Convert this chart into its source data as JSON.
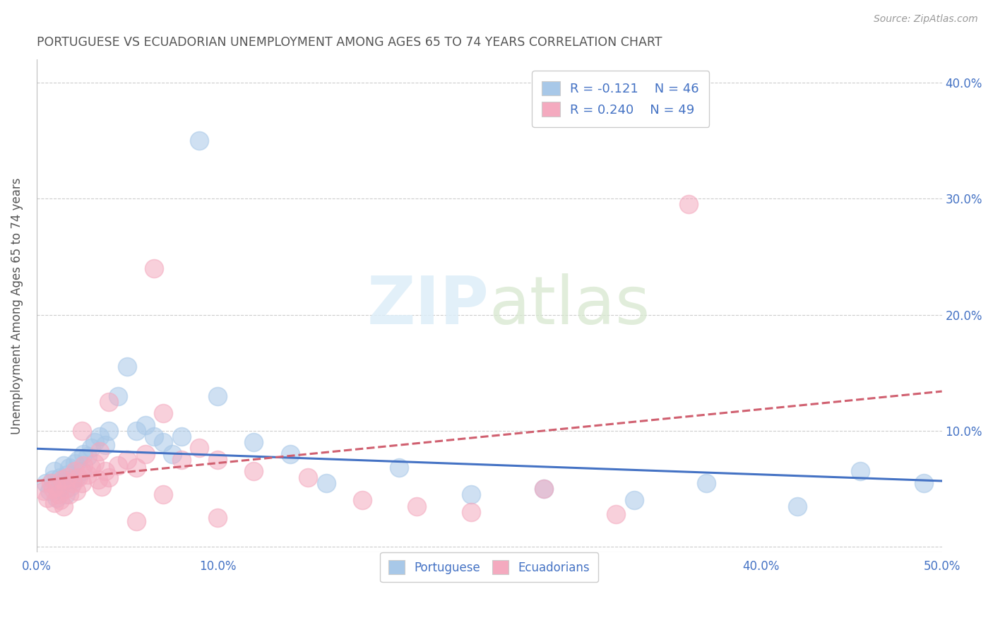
{
  "title": "PORTUGUESE VS ECUADORIAN UNEMPLOYMENT AMONG AGES 65 TO 74 YEARS CORRELATION CHART",
  "source": "Source: ZipAtlas.com",
  "ylabel": "Unemployment Among Ages 65 to 74 years",
  "xlim": [
    0,
    0.5
  ],
  "ylim": [
    -0.005,
    0.42
  ],
  "portuguese_color": "#a8c8e8",
  "ecuadorian_color": "#f4aabf",
  "portuguese_line_color": "#4472c4",
  "ecuadorian_line_color": "#d06070",
  "legend_R_portuguese": "-0.121",
  "legend_N_portuguese": "46",
  "legend_R_ecuadorian": "0.240",
  "legend_N_ecuadorian": "49",
  "watermark_zip": "ZIP",
  "watermark_atlas": "atlas",
  "bg_color": "#ffffff",
  "grid_color": "#cccccc",
  "title_color": "#555555",
  "axis_color": "#4472c4",
  "ylabel_color": "#555555",
  "portuguese_x": [
    0.005,
    0.007,
    0.009,
    0.01,
    0.011,
    0.012,
    0.013,
    0.014,
    0.015,
    0.016,
    0.017,
    0.018,
    0.019,
    0.02,
    0.021,
    0.022,
    0.023,
    0.025,
    0.026,
    0.028,
    0.03,
    0.032,
    0.035,
    0.038,
    0.04,
    0.045,
    0.05,
    0.055,
    0.06,
    0.065,
    0.07,
    0.075,
    0.08,
    0.09,
    0.1,
    0.12,
    0.14,
    0.16,
    0.2,
    0.24,
    0.28,
    0.33,
    0.37,
    0.42,
    0.455,
    0.49
  ],
  "portuguese_y": [
    0.055,
    0.048,
    0.058,
    0.065,
    0.042,
    0.05,
    0.06,
    0.055,
    0.07,
    0.045,
    0.062,
    0.068,
    0.052,
    0.058,
    0.072,
    0.06,
    0.075,
    0.065,
    0.08,
    0.078,
    0.085,
    0.09,
    0.095,
    0.088,
    0.1,
    0.13,
    0.155,
    0.1,
    0.105,
    0.095,
    0.09,
    0.08,
    0.095,
    0.35,
    0.13,
    0.09,
    0.08,
    0.055,
    0.068,
    0.045,
    0.05,
    0.04,
    0.055,
    0.035,
    0.065,
    0.055
  ],
  "ecuadorian_x": [
    0.004,
    0.006,
    0.008,
    0.009,
    0.01,
    0.011,
    0.012,
    0.013,
    0.014,
    0.015,
    0.016,
    0.017,
    0.018,
    0.02,
    0.021,
    0.022,
    0.023,
    0.025,
    0.026,
    0.028,
    0.03,
    0.032,
    0.034,
    0.036,
    0.038,
    0.04,
    0.045,
    0.05,
    0.055,
    0.06,
    0.065,
    0.07,
    0.08,
    0.09,
    0.1,
    0.12,
    0.15,
    0.18,
    0.21,
    0.24,
    0.28,
    0.32,
    0.36,
    0.04,
    0.07,
    0.1,
    0.025,
    0.035,
    0.055
  ],
  "ecuadorian_y": [
    0.048,
    0.042,
    0.055,
    0.05,
    0.038,
    0.052,
    0.045,
    0.04,
    0.058,
    0.035,
    0.05,
    0.06,
    0.045,
    0.055,
    0.065,
    0.048,
    0.06,
    0.055,
    0.07,
    0.062,
    0.068,
    0.072,
    0.058,
    0.052,
    0.065,
    0.06,
    0.07,
    0.075,
    0.068,
    0.08,
    0.24,
    0.115,
    0.075,
    0.085,
    0.075,
    0.065,
    0.06,
    0.04,
    0.035,
    0.03,
    0.05,
    0.028,
    0.295,
    0.125,
    0.045,
    0.025,
    0.1,
    0.082,
    0.022
  ]
}
